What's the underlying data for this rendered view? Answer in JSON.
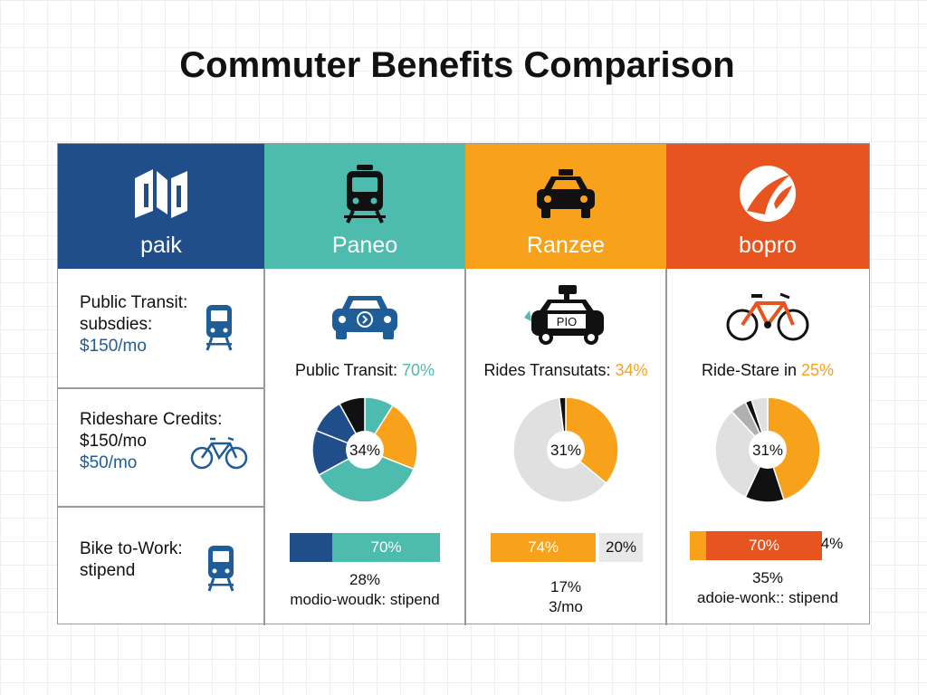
{
  "title": "Commuter Benefits Comparison",
  "colors": {
    "navy": "#1f4e8a",
    "teal": "#4dbbae",
    "orange": "#f8a11a",
    "redorange": "#e8541f",
    "black": "#111111",
    "grey": "#e0e0e0",
    "icon_blue": "#1f5d99"
  },
  "headers": [
    {
      "label": "paik",
      "icon": "logo-cube-icon"
    },
    {
      "label": "Paneo",
      "icon": "train-icon"
    },
    {
      "label": "Ranzee",
      "icon": "taxi-icon"
    },
    {
      "label": "bopro",
      "icon": "swoosh-logo-icon"
    }
  ],
  "rows": [
    {
      "line1": "Public Transit:",
      "line2": "subsdies:",
      "line3": "$150/mo",
      "icon": "train-icon"
    },
    {
      "line1": "Rideshare Credits:",
      "line2": "$150/mo",
      "line3": "$50/mo",
      "icon": "bicycle-icon"
    },
    {
      "line1": "Bike to-Work:",
      "line2": "stipend",
      "icon": "train-icon"
    }
  ],
  "columns": [
    {
      "icon": "car-icon",
      "pie_title": "Public Transit:",
      "pie_title_pct": "70%",
      "pie_center": "34%",
      "bar_left": "",
      "bar_main": "70%",
      "bar_right": "",
      "sub1": "28%",
      "sub2": "modio-woudk: stipend"
    },
    {
      "icon": "taxi-icon",
      "pie_title": "Rides Transutats:",
      "pie_title_pct": "34%",
      "pie_center": "31%",
      "bar_left": "",
      "bar_main": "74%",
      "bar_right": "20%",
      "sub1": "17%",
      "sub2": "3/mo",
      "taxi_sign": "PIO"
    },
    {
      "icon": "bicycle-icon",
      "pie_title": "Ride-Stare in",
      "pie_title_pct": "25%",
      "pie_center": "31%",
      "bar_left": "",
      "bar_main": "70%",
      "bar_right": "4%",
      "sub1": "35%",
      "sub2": "adoie-wonk:: stipend"
    }
  ],
  "chart_data": [
    {
      "type": "pie",
      "title": "Public Transit: 70%",
      "center_label": "34%",
      "slices": [
        {
          "value": 9,
          "color": "#4dbbae"
        },
        {
          "value": 22,
          "color": "#f8a11a"
        },
        {
          "value": 36,
          "color": "#4dbbae"
        },
        {
          "value": 14,
          "color": "#1f4e8a"
        },
        {
          "value": 11,
          "color": "#1f4e8a"
        },
        {
          "value": 8,
          "color": "#111111"
        }
      ]
    },
    {
      "type": "pie",
      "title": "Rides Transutats: 34%",
      "center_label": "31%",
      "slices": [
        {
          "value": 36,
          "color": "#f8a11a"
        },
        {
          "value": 62,
          "color": "#e0e0e0"
        },
        {
          "value": 2,
          "color": "#111111"
        }
      ]
    },
    {
      "type": "pie",
      "title": "Ride-Stare in 25%",
      "center_label": "31%",
      "slices": [
        {
          "value": 45,
          "color": "#f8a11a"
        },
        {
          "value": 12,
          "color": "#111111"
        },
        {
          "value": 31,
          "color": "#e0e0e0"
        },
        {
          "value": 5,
          "color": "#b0b0b0"
        },
        {
          "value": 2,
          "color": "#111111"
        },
        {
          "value": 5,
          "color": "#e0e0e0"
        }
      ]
    },
    {
      "type": "bar",
      "segments": [
        {
          "value": 28,
          "color": "#1f4e8a",
          "label": ""
        },
        {
          "value": 70,
          "color": "#4dbbae",
          "label": "70%"
        }
      ]
    },
    {
      "type": "bar",
      "segments": [
        {
          "value": 74,
          "color": "#f8a11a",
          "label": "74%"
        },
        {
          "value": 20,
          "color": "#e8e8e8",
          "label": "20%"
        }
      ]
    },
    {
      "type": "bar",
      "segments": [
        {
          "value": 10,
          "color": "#f8a11a",
          "label": ""
        },
        {
          "value": 70,
          "color": "#e8541f",
          "label": "70%"
        }
      ]
    }
  ]
}
